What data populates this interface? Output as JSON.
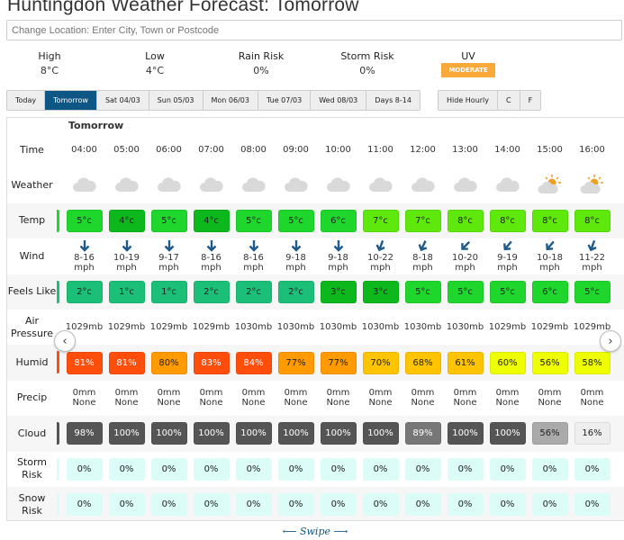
{
  "title": "Huntingdon Weather Forecast: Tomorrow",
  "location_placeholder": "Change Location: Enter City, Town or Postcode",
  "summary": [
    {
      "label": "High",
      "value": "8°C"
    },
    {
      "label": "Low",
      "value": "4°C"
    },
    {
      "label": "Rain Risk",
      "value": "0%"
    },
    {
      "label": "Storm Risk",
      "value": "0%"
    },
    {
      "label": "UV",
      "value": "MODERATE"
    }
  ],
  "uv_color": "#f8a93a",
  "day_tabs": [
    "Today",
    "Tomorrow",
    "Sat 04/03",
    "Sun 05/03",
    "Mon 06/03",
    "Tue 07/03",
    "Wed 08/03",
    "Days 8-14"
  ],
  "active_tab": "Tomorrow",
  "option_tabs": [
    "Hide Hourly",
    "C",
    "F"
  ],
  "table": {
    "day_header": "Tomorrow",
    "row_labels": {
      "time": "Time",
      "weather": "Weather",
      "temp": "Temp",
      "wind": "Wind",
      "feels": "Feels Like",
      "pressure": "Air Pressure",
      "humid": "Humid",
      "precip": "Precip",
      "cloud": "Cloud",
      "storm": "Storm Risk",
      "snow": "Snow Risk"
    },
    "hours": [
      {
        "time": "04:00",
        "weather": "cloud-icon",
        "temp": "5°c",
        "temp_color": "#1fd62c",
        "wind_dir": 0,
        "wind": "8-16",
        "wind_unit": "mph",
        "feels": "2°c",
        "feels_color": "#1cbf78",
        "pressure": "1029mb",
        "humid": "81%",
        "humid_color": "#ff4e0c",
        "precip": "0mm",
        "precip_type": "None",
        "cloud": "98%",
        "cloud_color": "#555555",
        "storm": "0%",
        "snow": "0%"
      },
      {
        "time": "05:00",
        "weather": "cloud-icon",
        "temp": "4°c",
        "temp_color": "#0cb81c",
        "wind_dir": 0,
        "wind": "10-19",
        "wind_unit": "mph",
        "feels": "1°c",
        "feels_color": "#1cbf78",
        "pressure": "1029mb",
        "humid": "81%",
        "humid_color": "#ff4e0c",
        "precip": "0mm",
        "precip_type": "None",
        "cloud": "100%",
        "cloud_color": "#555555",
        "storm": "0%",
        "snow": "0%"
      },
      {
        "time": "06:00",
        "weather": "cloud-icon",
        "temp": "5°c",
        "temp_color": "#1fd62c",
        "wind_dir": 0,
        "wind": "9-17",
        "wind_unit": "mph",
        "feels": "1°c",
        "feels_color": "#1cbf78",
        "pressure": "1029mb",
        "humid": "80%",
        "humid_color": "#ff9a00",
        "precip": "0mm",
        "precip_type": "None",
        "cloud": "100%",
        "cloud_color": "#555555",
        "storm": "0%",
        "snow": "0%"
      },
      {
        "time": "07:00",
        "weather": "cloud-icon",
        "temp": "4°c",
        "temp_color": "#0cb81c",
        "wind_dir": 0,
        "wind": "8-16",
        "wind_unit": "mph",
        "feels": "2°c",
        "feels_color": "#1cbf78",
        "pressure": "1029mb",
        "humid": "83%",
        "humid_color": "#ff4e0c",
        "precip": "0mm",
        "precip_type": "None",
        "cloud": "100%",
        "cloud_color": "#555555",
        "storm": "0%",
        "snow": "0%"
      },
      {
        "time": "08:00",
        "weather": "cloud-icon",
        "temp": "5°c",
        "temp_color": "#1fd62c",
        "wind_dir": 0,
        "wind": "8-16",
        "wind_unit": "mph",
        "feels": "2°c",
        "feels_color": "#1cbf78",
        "pressure": "1030mb",
        "humid": "84%",
        "humid_color": "#ff4e0c",
        "precip": "0mm",
        "precip_type": "None",
        "cloud": "100%",
        "cloud_color": "#555555",
        "storm": "0%",
        "snow": "0%"
      },
      {
        "time": "09:00",
        "weather": "cloud-icon",
        "temp": "5°c",
        "temp_color": "#1fd62c",
        "wind_dir": 0,
        "wind": "9-18",
        "wind_unit": "mph",
        "feels": "2°c",
        "feels_color": "#1cbf78",
        "pressure": "1030mb",
        "humid": "77%",
        "humid_color": "#ff9a00",
        "precip": "0mm",
        "precip_type": "None",
        "cloud": "100%",
        "cloud_color": "#555555",
        "storm": "0%",
        "snow": "0%"
      },
      {
        "time": "10:00",
        "weather": "cloud-icon",
        "temp": "6°c",
        "temp_color": "#1fd62c",
        "wind_dir": 0,
        "wind": "9-18",
        "wind_unit": "mph",
        "feels": "3°c",
        "feels_color": "#0cb81c",
        "pressure": "1030mb",
        "humid": "77%",
        "humid_color": "#ff9a00",
        "precip": "0mm",
        "precip_type": "None",
        "cloud": "100%",
        "cloud_color": "#555555",
        "storm": "0%",
        "snow": "0%"
      },
      {
        "time": "11:00",
        "weather": "cloud-icon",
        "temp": "7°c",
        "temp_color": "#5ee80c",
        "wind_dir": 20,
        "wind": "10-22",
        "wind_unit": "mph",
        "feels": "3°c",
        "feels_color": "#0cb81c",
        "pressure": "1030mb",
        "humid": "70%",
        "humid_color": "#ffc400",
        "precip": "0mm",
        "precip_type": "None",
        "cloud": "100%",
        "cloud_color": "#555555",
        "storm": "0%",
        "snow": "0%"
      },
      {
        "time": "12:00",
        "weather": "cloud-icon",
        "temp": "7°c",
        "temp_color": "#5ee80c",
        "wind_dir": 25,
        "wind": "8-18",
        "wind_unit": "mph",
        "feels": "5°c",
        "feels_color": "#1fd62c",
        "pressure": "1030mb",
        "humid": "68%",
        "humid_color": "#ffc400",
        "precip": "0mm",
        "precip_type": "None",
        "cloud": "89%",
        "cloud_color": "#777777",
        "storm": "0%",
        "snow": "0%"
      },
      {
        "time": "13:00",
        "weather": "cloud-icon",
        "temp": "8°c",
        "temp_color": "#5ee80c",
        "wind_dir": 45,
        "wind": "10-20",
        "wind_unit": "mph",
        "feels": "5°c",
        "feels_color": "#1fd62c",
        "pressure": "1030mb",
        "humid": "61%",
        "humid_color": "#ffc400",
        "precip": "0mm",
        "precip_type": "None",
        "cloud": "100%",
        "cloud_color": "#555555",
        "storm": "0%",
        "snow": "0%"
      },
      {
        "time": "14:00",
        "weather": "cloud-icon",
        "temp": "8°c",
        "temp_color": "#5ee80c",
        "wind_dir": 40,
        "wind": "9-19",
        "wind_unit": "mph",
        "feels": "5°c",
        "feels_color": "#1fd62c",
        "pressure": "1029mb",
        "humid": "60%",
        "humid_color": "#eeff00",
        "precip": "0mm",
        "precip_type": "None",
        "cloud": "100%",
        "cloud_color": "#555555",
        "storm": "0%",
        "snow": "0%"
      },
      {
        "time": "15:00",
        "weather": "sun-cloud-icon",
        "temp": "8°c",
        "temp_color": "#5ee80c",
        "wind_dir": 40,
        "wind": "10-18",
        "wind_unit": "mph",
        "feels": "6°c",
        "feels_color": "#1fd62c",
        "pressure": "1029mb",
        "humid": "56%",
        "humid_color": "#eeff00",
        "precip": "0mm",
        "precip_type": "None",
        "cloud": "56%",
        "cloud_color": "#aaaaaa",
        "storm": "0%",
        "snow": "0%"
      },
      {
        "time": "16:00",
        "weather": "sun-cloud-icon",
        "temp": "8°c",
        "temp_color": "#5ee80c",
        "wind_dir": 20,
        "wind": "11-22",
        "wind_unit": "mph",
        "feels": "5°c",
        "feels_color": "#1fd62c",
        "pressure": "1029mb",
        "humid": "58%",
        "humid_color": "#eeff00",
        "precip": "0mm",
        "precip_type": "None",
        "cloud": "16%",
        "cloud_color": "#eeeeee",
        "storm": "0%",
        "snow": "0%"
      }
    ],
    "risk_color": "#dcfcf8"
  },
  "swipe_label": "Swipe"
}
